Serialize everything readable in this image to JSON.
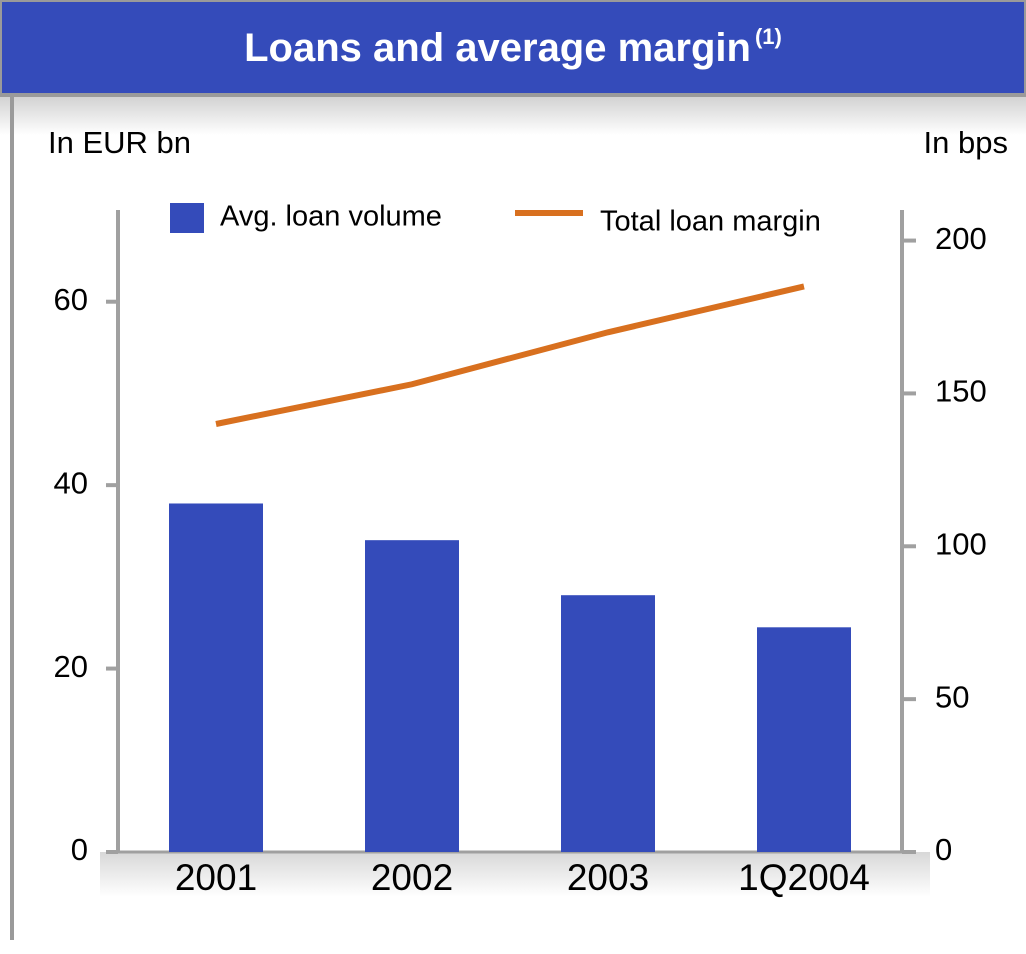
{
  "chart_data": {
    "type": "bar",
    "title": "Loans and average margin",
    "title_note": "(1)",
    "y_label": "In EUR bn",
    "y2_label": "In bps",
    "categories": [
      "2001",
      "2002",
      "2003",
      "1Q2004"
    ],
    "series": [
      {
        "name": "Avg. loan volume",
        "color": "#344bba",
        "type": "bar",
        "values": [
          38,
          34,
          28,
          24.5
        ]
      },
      {
        "name": "Total loan margin",
        "color": "#d8701f",
        "type": "line",
        "axis": "y2",
        "values": [
          140,
          153,
          170,
          185
        ]
      }
    ],
    "ylim": [
      0,
      70
    ],
    "yticks": [
      0,
      20,
      40,
      60
    ],
    "y2lim": [
      0,
      210
    ],
    "y2ticks": [
      0,
      50,
      100,
      150,
      200
    ]
  }
}
